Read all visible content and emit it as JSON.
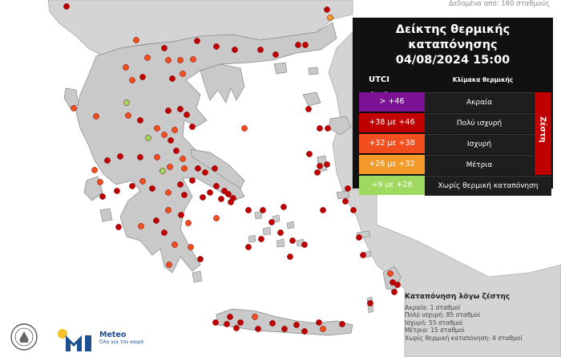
{
  "source_note": "Δεδομένα από: 160 σταθμούς",
  "panel": {
    "title_line1": "Δείκτης θερμικής καταπόνησης",
    "title_line2": "04/08/2024 15:00",
    "utci_header": "UTCI [°C]",
    "scale_header": "Κλίμακα θερμικής καταπόνησης",
    "heat_label": "Ζέστη"
  },
  "legend": [
    {
      "range": "> +46",
      "label": "Ακραία",
      "color": "#7b1394"
    },
    {
      "range": "+38 με +46",
      "label": "Πολύ ισχυρή",
      "color": "#c00000"
    },
    {
      "range": "+32 με +38",
      "label": "Ισχυρή",
      "color": "#f24e1e"
    },
    {
      "range": "+26 με +32",
      "label": "Μέτρια",
      "color": "#f39a2b"
    },
    {
      "range": "+9 με +26",
      "label": "Χωρίς θερμική καταπόνηση",
      "color": "#9fd95f"
    }
  ],
  "stats": {
    "title": "Καταπόνηση λόγω ζέστης",
    "lines": [
      "Ακραία: 1 σταθμοί",
      "Πολύ ισχυρή: 85 σταθμοί",
      "Ισχυρή: 55 σταθμοί",
      "Μέτρια: 15 σταθμοί",
      "Χωρίς θερμική καταπόνηση: 4 σταθμοί"
    ]
  },
  "logo": {
    "name": "Meteo",
    "tagline": "Όλα για τον καιρό"
  },
  "colors": {
    "land": "#c9c9c9",
    "sea": "#ffffff",
    "border": "#8f8f8f"
  },
  "station_categories": [
    "very-strong",
    "strong",
    "moderate",
    "none"
  ]
}
